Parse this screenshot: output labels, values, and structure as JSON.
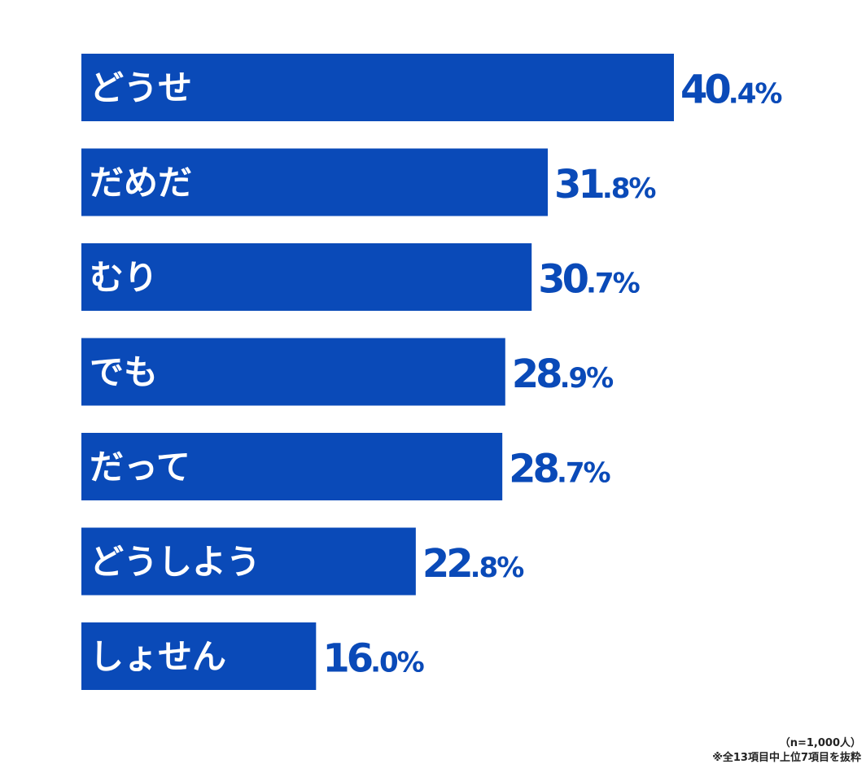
{
  "chart_data": {
    "type": "bar",
    "orientation": "horizontal",
    "categories": [
      "どうせ",
      "だめだ",
      "むり",
      "でも",
      "だって",
      "どうしよう",
      "しょせん"
    ],
    "values": [
      40.4,
      31.8,
      30.7,
      28.9,
      28.7,
      22.8,
      16.0
    ],
    "value_labels": [
      "40.4%",
      "31.8%",
      "30.7%",
      "28.9%",
      "28.7%",
      "22.8%",
      "16.0%"
    ],
    "unit": "%",
    "xlim": [
      0,
      40.4
    ],
    "grid": false,
    "legend": "none",
    "title": "",
    "xlabel": "",
    "ylabel": ""
  },
  "notes": {
    "sample": "（n=1,000人）",
    "selection": "※全13項目中上位7項目を抜粋"
  },
  "colors": {
    "bar": "#0a4ab8",
    "bar_label": "#ffffff",
    "value_label": "#0a4ab8",
    "background": "#ffffff"
  }
}
